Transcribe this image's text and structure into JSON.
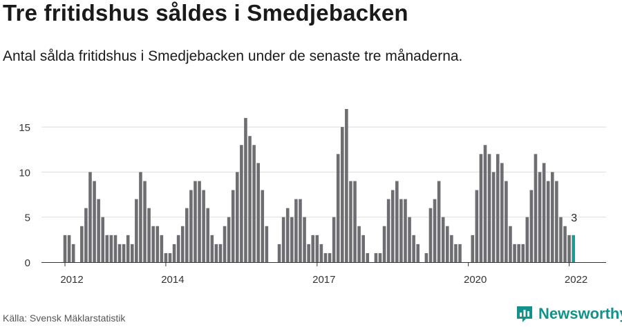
{
  "header": {
    "title": "Tre fritidshus såldes i Smedjebacken",
    "subtitle": "Antal sålda fritidshus i Smedjebacken under de senaste tre månaderna."
  },
  "footer": {
    "source": "Källa: Svensk Mäklarstatistik",
    "brand": "Newsworthy",
    "brand_icon": "newsworthy-logo-icon"
  },
  "colors": {
    "bar": "#6e6e72",
    "highlight": "#1a9a93",
    "grid": "#dddddd",
    "brand": "#14918b"
  },
  "chart_data": {
    "type": "bar",
    "start": "2012-01",
    "values": [
      3,
      3,
      2,
      0,
      4,
      6,
      10,
      9,
      7,
      5,
      3,
      3,
      3,
      2,
      2,
      3,
      2,
      7,
      10,
      9,
      6,
      4,
      4,
      3,
      1,
      1,
      2,
      3,
      4,
      6,
      8,
      9,
      9,
      8,
      6,
      3,
      2,
      2,
      4,
      5,
      8,
      10,
      13,
      16,
      14,
      13,
      11,
      8,
      4,
      0,
      0,
      2,
      5,
      6,
      5,
      7,
      7,
      5,
      2,
      3,
      3,
      2,
      1,
      1,
      5,
      12,
      15,
      17,
      9,
      9,
      4,
      3,
      1,
      0,
      1,
      1,
      4,
      7,
      8,
      9,
      7,
      7,
      5,
      3,
      2,
      0,
      1,
      6,
      7,
      9,
      5,
      4,
      3,
      2,
      2,
      0,
      0,
      3,
      8,
      12,
      13,
      12,
      10,
      12,
      11,
      9,
      4,
      2,
      2,
      2,
      5,
      8,
      12,
      10,
      11,
      9,
      10,
      9,
      5,
      4,
      3,
      3
    ],
    "highlight_last": true,
    "annotation": "3",
    "x_ticks": [
      "2012",
      "2014",
      "2017",
      "2020",
      "2022"
    ],
    "y_ticks": [
      "0",
      "5",
      "10",
      "15"
    ],
    "ylim": [
      0,
      17
    ],
    "grid": true,
    "legend": "none"
  }
}
